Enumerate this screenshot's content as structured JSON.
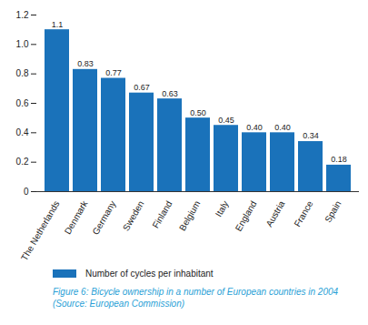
{
  "chart_data": {
    "type": "bar",
    "caption": "Figure 6: Bicycle ownership in a number of European countries in 2004 (Source: European Commission)",
    "categories": [
      "The Netherlands",
      "Denmark",
      "Germany",
      "Sweden",
      "Finland",
      "Belgium",
      "Italy",
      "England",
      "Austria",
      "France",
      "Spain"
    ],
    "series": [
      {
        "name": "Number of cycles per inhabitant",
        "color": "#1a72ba",
        "values": [
          1.1,
          0.83,
          0.77,
          0.67,
          0.63,
          0.5,
          0.45,
          0.4,
          0.4,
          0.34,
          0.18
        ],
        "value_labels": [
          "1.1",
          "0.83",
          "0.77",
          "0.67",
          "0.63",
          "0.50",
          "0.45",
          "0.40",
          "0.40",
          "0.34",
          "0.18"
        ]
      }
    ],
    "ylim": [
      0,
      1.2
    ],
    "yticks": [
      0,
      0.2,
      0.4,
      0.6,
      0.8,
      {
        "value": 1,
        "label": "1.0"
      },
      1.2
    ],
    "grid": false,
    "data_labels": true,
    "legend": "bottom"
  }
}
